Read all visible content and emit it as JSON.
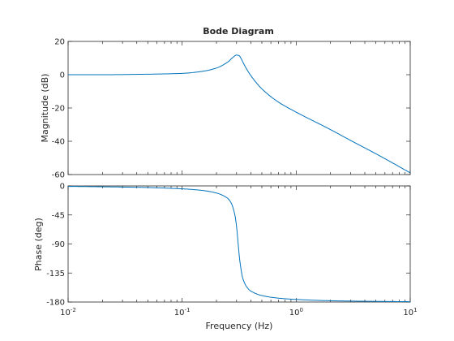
{
  "chart_data": [
    {
      "type": "line",
      "title": "Bode Diagram",
      "ylabel": "Magnitude (dB)",
      "xlabel": "",
      "xscale": "log",
      "xlim": [
        0.01,
        10
      ],
      "ylim": [
        -60,
        20
      ],
      "yticks": [
        20,
        0,
        -20,
        -40,
        -60
      ],
      "grid": false,
      "color": "#0072bd",
      "series": [
        {
          "x": [
            0.01,
            0.02,
            0.05,
            0.1,
            0.15,
            0.2,
            0.25,
            0.28,
            0.3,
            0.315,
            0.33,
            0.35,
            0.4,
            0.5,
            0.7,
            1,
            2,
            3,
            5,
            7,
            10
          ],
          "y": [
            0,
            0,
            0.3,
            0.8,
            2,
            4,
            7.5,
            10.5,
            11.8,
            11.5,
            9.5,
            6,
            -0.5,
            -8.5,
            -16.5,
            -22.5,
            -33,
            -39.5,
            -47.5,
            -53,
            -59
          ]
        }
      ]
    },
    {
      "type": "line",
      "title": "",
      "ylabel": "Phase (deg)",
      "xlabel": "Frequency  (Hz)",
      "xscale": "log",
      "xlim": [
        0.01,
        10
      ],
      "ylim": [
        -180,
        0
      ],
      "yticks": [
        0,
        -45,
        -90,
        -135,
        -180
      ],
      "xticks": [
        0.01,
        0.1,
        1,
        10
      ],
      "xtick_labels": [
        {
          "base": "10",
          "exp": "-2"
        },
        {
          "base": "10",
          "exp": "-1"
        },
        {
          "base": "10",
          "exp": "0"
        },
        {
          "base": "10",
          "exp": "1"
        }
      ],
      "grid": false,
      "color": "#0072bd",
      "series": [
        {
          "x": [
            0.01,
            0.02,
            0.05,
            0.1,
            0.15,
            0.2,
            0.25,
            0.27,
            0.29,
            0.3,
            0.31,
            0.32,
            0.34,
            0.37,
            0.4,
            0.5,
            0.7,
            1,
            2,
            5,
            10
          ],
          "y": [
            -0.7,
            -1.3,
            -2.5,
            -4.5,
            -7,
            -11,
            -19,
            -27,
            -45,
            -63,
            -90,
            -115,
            -143,
            -157,
            -163,
            -170,
            -174,
            -176,
            -178,
            -179,
            -179.5
          ]
        }
      ]
    }
  ]
}
